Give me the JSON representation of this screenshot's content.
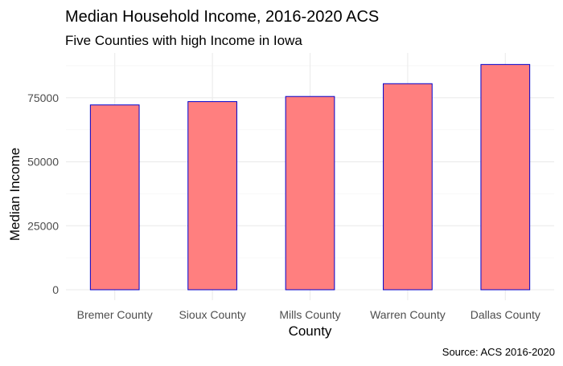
{
  "chart_data": {
    "type": "bar",
    "title": "Median Household Income, 2016-2020 ACS",
    "subtitle": "Five Counties with high Income in Iowa",
    "xlabel": "County",
    "ylabel": "Median Income",
    "caption": "Source: ACS 2016-2020",
    "categories": [
      "Bremer County",
      "Sioux County",
      "Mills County",
      "Warren County",
      "Dallas County"
    ],
    "values": [
      72200,
      73500,
      75500,
      80500,
      88000
    ],
    "ylim": [
      0,
      92500
    ],
    "yticks": [
      0,
      25000,
      50000,
      75000
    ],
    "yticklabels": [
      "0",
      "25000",
      "50000",
      "75000"
    ],
    "grid": true,
    "legend": "none",
    "colors": {
      "bar_fill": "#ff7f7f",
      "bar_stroke": "#0000cc",
      "grid": "#ebebeb",
      "tick_text": "#4d4d4d"
    }
  }
}
